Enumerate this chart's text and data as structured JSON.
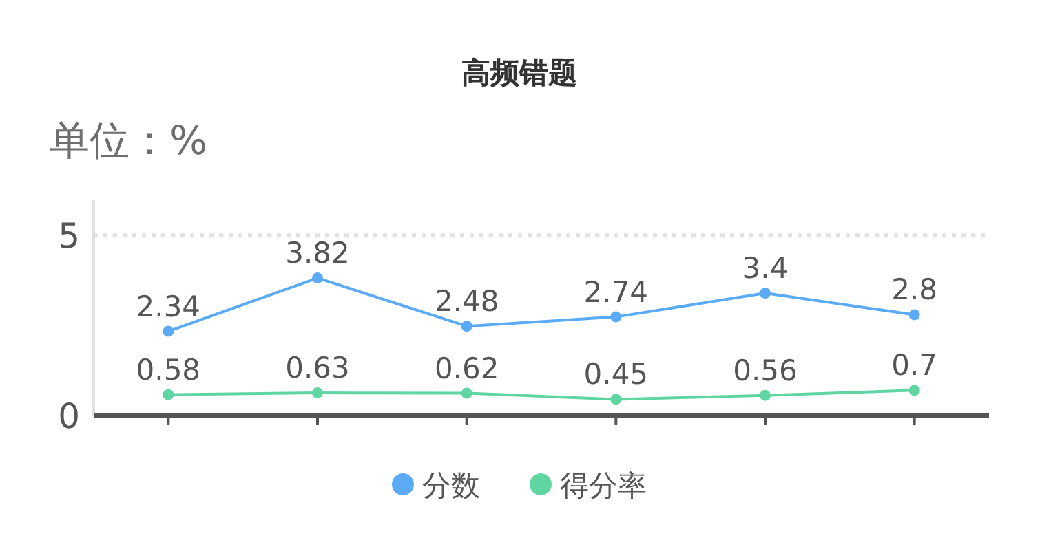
{
  "chart_data": {
    "type": "line",
    "title": "高频错题",
    "ylabel": "单位：%",
    "categories": [
      null,
      null,
      null,
      null,
      null,
      null
    ],
    "series": [
      {
        "name": "分数",
        "color": "#5aaaf5",
        "values": [
          2.34,
          3.82,
          2.48,
          2.74,
          3.4,
          2.8
        ]
      },
      {
        "name": "得分率",
        "color": "#5fd6a2",
        "values": [
          0.58,
          0.63,
          0.62,
          0.45,
          0.56,
          0.7
        ]
      }
    ],
    "ylim": [
      0,
      6
    ],
    "yticks": [
      0,
      5
    ],
    "grid": "y",
    "legend": "bottom",
    "tick_labels": "y",
    "data_labels": true,
    "marker": "circle",
    "line_style": "solid"
  }
}
